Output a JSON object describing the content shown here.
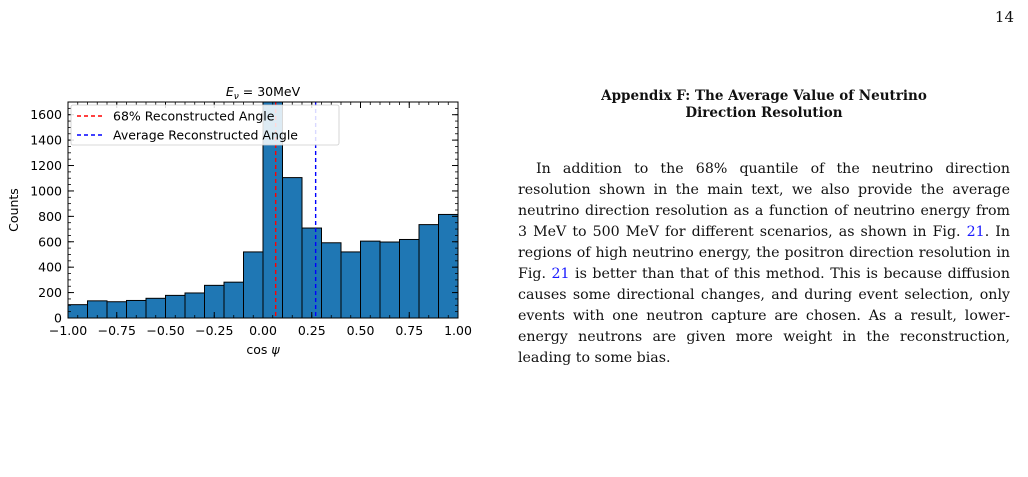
{
  "page": {
    "number": "14"
  },
  "appendix": {
    "title_line1": "Appendix F: The Average Value of Neutrino",
    "title_line2": "Direction Resolution",
    "paragraph": [
      {
        "text": "In addition to the 68% quantile of the neutrino direction resolution shown in the main text, we also provide the average neutrino direction resolution as a function of neutrino energy from 3 MeV to 500 MeV for different scenarios, as shown in Fig. ",
        "ref": false
      },
      {
        "text": "21",
        "ref": true
      },
      {
        "text": ". In regions of high neutrino energy, the positron direction resolution in Fig. ",
        "ref": false
      },
      {
        "text": "21",
        "ref": true
      },
      {
        "text": " is better than that of this method. This is because diffusion causes some directional changes, and during event selection, only events with one neutron capture are chosen. As a result, lower-energy neutrons are given more weight in the reconstruction, leading to some bias.",
        "ref": false
      }
    ]
  },
  "chart_data": {
    "type": "bar",
    "title": "E_ν = 30MeV",
    "title_parts": {
      "main": "E",
      "sub": "ν",
      "rest": " = 30MeV"
    },
    "xlabel": "cos ψ",
    "ylabel": "Counts",
    "xlim": [
      -1.0,
      1.0
    ],
    "ylim": [
      0,
      1700
    ],
    "bin_edges": [
      -1.0,
      -0.9,
      -0.8,
      -0.7,
      -0.6,
      -0.5,
      -0.4,
      -0.3,
      -0.2,
      -0.1,
      0.0,
      0.1,
      0.2,
      0.3,
      0.4,
      0.5,
      0.6,
      0.7,
      0.8,
      0.9,
      1.0
    ],
    "values": [
      105,
      135,
      128,
      138,
      155,
      178,
      197,
      257,
      282,
      520,
      1700,
      1105,
      708,
      592,
      520,
      605,
      598,
      618,
      735,
      815
    ],
    "bar_color": "#1f77b4",
    "edge_color": "#000000",
    "x_ticks": [
      -1.0,
      -0.75,
      -0.5,
      -0.25,
      0.0,
      0.25,
      0.5,
      0.75,
      1.0
    ],
    "x_tick_labels": [
      "−1.00",
      "−0.75",
      "−0.50",
      "−0.25",
      "0.00",
      "0.25",
      "0.50",
      "0.75",
      "1.00"
    ],
    "y_ticks": [
      0,
      200,
      400,
      600,
      800,
      1000,
      1200,
      1400,
      1600
    ],
    "y_tick_labels": [
      "0",
      "200",
      "400",
      "600",
      "800",
      "1000",
      "1200",
      "1400",
      "1600"
    ],
    "vlines": [
      {
        "name": "68% Reconstructed Angle",
        "x": 0.065,
        "color": "#ff0000",
        "style": "dashed"
      },
      {
        "name": "Average Reconstructed Angle",
        "x": 0.27,
        "color": "#0000ff",
        "style": "dashed"
      }
    ],
    "legend_position": "top-left",
    "grid": false
  }
}
